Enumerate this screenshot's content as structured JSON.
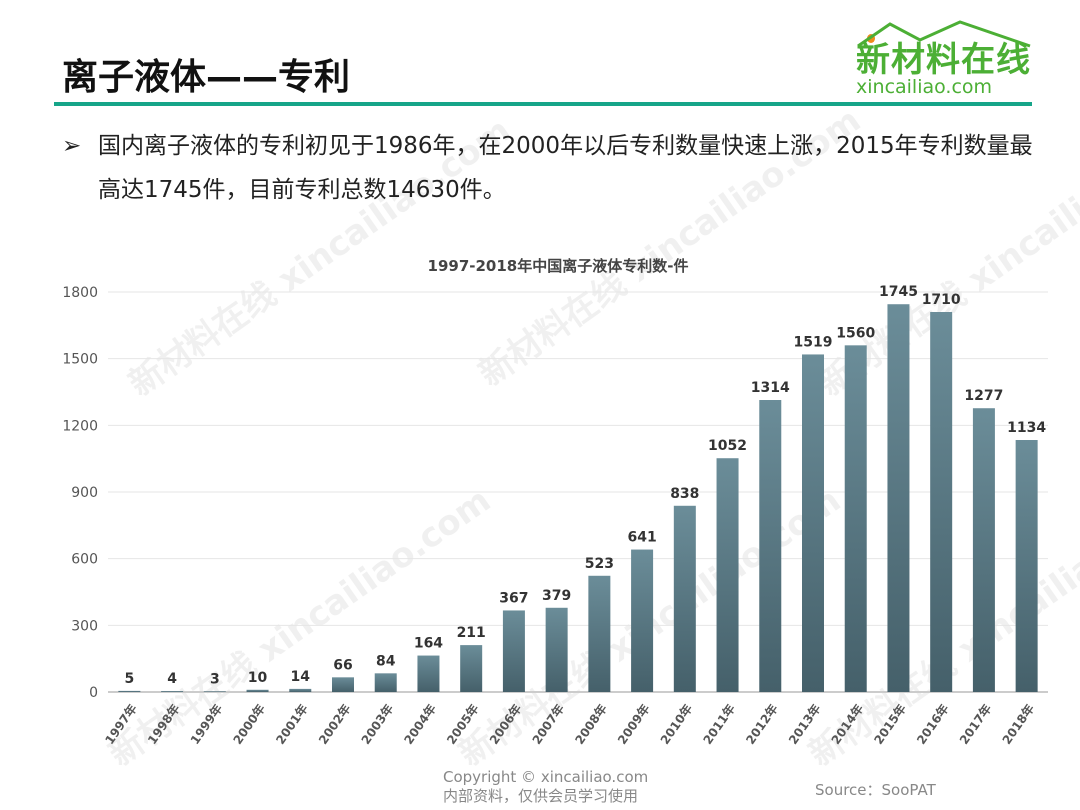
{
  "header": {
    "title": "离子液体——专利",
    "logo_cn": "新材料在线",
    "logo_en": "xincailiao.com"
  },
  "bullet": {
    "text": "国内离子液体的专利初见于1986年，在2000年以后专利数量快速上涨，2015年专利数量最高达1745件，目前专利总数14630件。"
  },
  "watermark": "新材料在线 xincailiao.com",
  "footer": {
    "copyright": "Copyright © xincailiao.com",
    "internal": "内部资料，仅供会员学习使用",
    "source": "Source：SooPAT"
  },
  "chart_data": {
    "type": "bar",
    "title": "1997-2018年中国离子液体专利数-件",
    "categories": [
      "1997年",
      "1998年",
      "1999年",
      "2000年",
      "2001年",
      "2002年",
      "2003年",
      "2004年",
      "2005年",
      "2006年",
      "2007年",
      "2008年",
      "2009年",
      "2010年",
      "2011年",
      "2012年",
      "2013年",
      "2014年",
      "2015年",
      "2016年",
      "2017年",
      "2018年"
    ],
    "values": [
      5,
      4,
      3,
      10,
      14,
      66,
      84,
      164,
      211,
      367,
      379,
      523,
      641,
      838,
      1052,
      1314,
      1519,
      1560,
      1745,
      1710,
      1277,
      1134
    ],
    "yticks": [
      0,
      300,
      600,
      900,
      1200,
      1500,
      1800
    ],
    "ylim": [
      0,
      1800
    ],
    "grid": true,
    "bar_color_top": "#6b8d99",
    "bar_color_bottom": "#45606a"
  }
}
